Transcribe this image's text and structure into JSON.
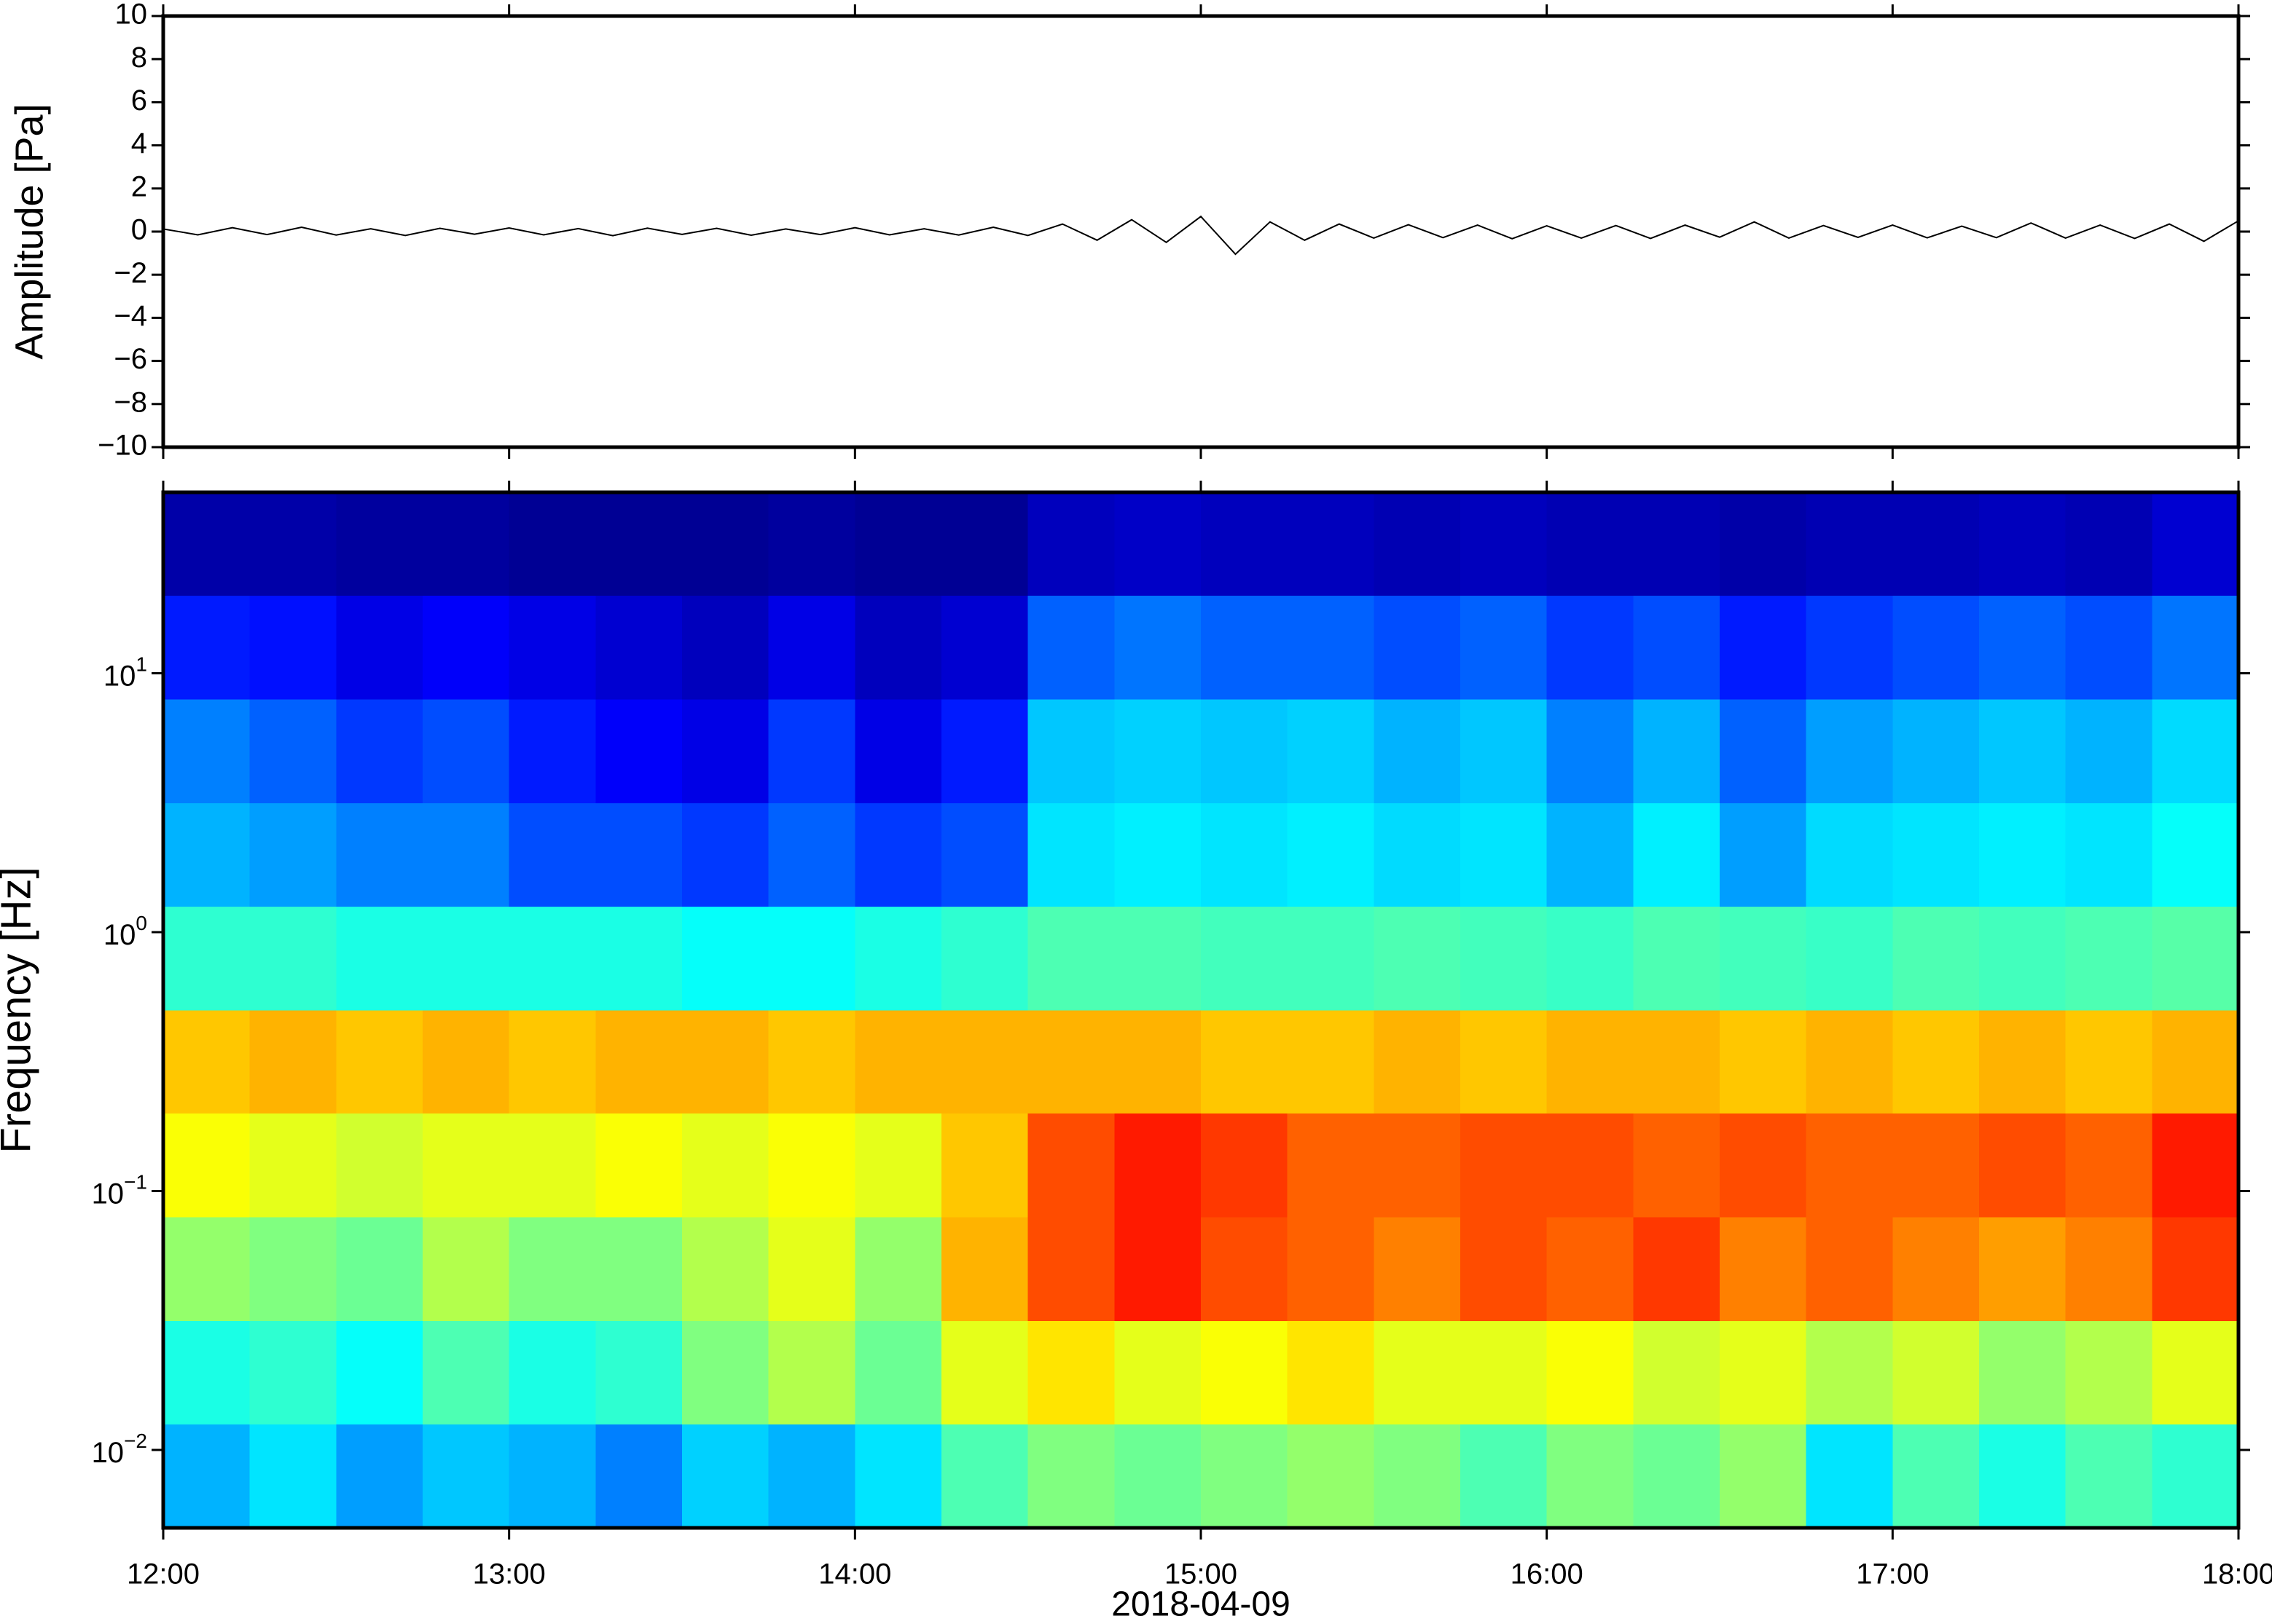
{
  "chart_data": [
    {
      "type": "line",
      "ylabel": "Amplitude [Pa]",
      "color": "#000000",
      "xlim": [
        12,
        18
      ],
      "xticks": [
        12,
        13,
        14,
        15,
        16,
        17,
        18
      ],
      "ylim": [
        -10,
        10
      ],
      "yticks": [
        {
          "value": -10,
          "label": "−10"
        },
        {
          "value": -8,
          "label": "−8"
        },
        {
          "value": -6,
          "label": "−6"
        },
        {
          "value": -4,
          "label": "−4"
        },
        {
          "value": -2,
          "label": "−2"
        },
        0,
        2,
        4,
        6,
        8,
        10
      ],
      "x": [
        12.0,
        12.1,
        12.2,
        12.3,
        12.4,
        12.5,
        12.6,
        12.7,
        12.8,
        12.9,
        13.0,
        13.1,
        13.2,
        13.3,
        13.4,
        13.5,
        13.6,
        13.7,
        13.8,
        13.9,
        14.0,
        14.1,
        14.2,
        14.3,
        14.4,
        14.5,
        14.6,
        14.7,
        14.8,
        14.9,
        15.0,
        15.1,
        15.2,
        15.3,
        15.4,
        15.5,
        15.6,
        15.7,
        15.8,
        15.9,
        16.0,
        16.1,
        16.2,
        16.3,
        16.4,
        16.5,
        16.6,
        16.7,
        16.8,
        16.9,
        17.0,
        17.1,
        17.2,
        17.3,
        17.4,
        17.5,
        17.6,
        17.7,
        17.8,
        17.9,
        18.0
      ],
      "values": [
        0.12,
        -0.15,
        0.18,
        -0.14,
        0.2,
        -0.16,
        0.13,
        -0.18,
        0.15,
        -0.12,
        0.17,
        -0.15,
        0.14,
        -0.19,
        0.16,
        -0.13,
        0.15,
        -0.17,
        0.12,
        -0.14,
        0.18,
        -0.15,
        0.13,
        -0.16,
        0.2,
        -0.18,
        0.35,
        -0.4,
        0.55,
        -0.5,
        0.7,
        -1.05,
        0.45,
        -0.4,
        0.35,
        -0.3,
        0.32,
        -0.28,
        0.3,
        -0.33,
        0.27,
        -0.3,
        0.28,
        -0.32,
        0.3,
        -0.26,
        0.45,
        -0.3,
        0.28,
        -0.27,
        0.3,
        -0.29,
        0.25,
        -0.28,
        0.4,
        -0.3,
        0.3,
        -0.32,
        0.35,
        -0.45,
        0.5
      ]
    },
    {
      "type": "heatmap",
      "ylabel": "Frequency [Hz]",
      "xlabel": "2018-04-09",
      "colormap": "jet",
      "log_y": true,
      "xlim": [
        12,
        18
      ],
      "xticks": [
        {
          "value": 12,
          "label": "12:00"
        },
        {
          "value": 13,
          "label": "13:00"
        },
        {
          "value": 14,
          "label": "14:00"
        },
        {
          "value": 15,
          "label": "15:00"
        },
        {
          "value": 16,
          "label": "16:00"
        },
        {
          "value": 17,
          "label": "17:00"
        },
        {
          "value": 18,
          "label": "18:00"
        }
      ],
      "ylim": [
        0.005,
        50
      ],
      "yticks": [
        {
          "value": 0.01,
          "label": "10",
          "exponent": "−2"
        },
        {
          "value": 0.1,
          "label": "10",
          "exponent": "−1"
        },
        {
          "value": 1,
          "label": "10",
          "exponent": "0"
        },
        {
          "value": 10,
          "label": "10",
          "exponent": "1"
        }
      ],
      "zlim": [
        0,
        1
      ],
      "time_bins": [
        12,
        12.25,
        12.5,
        12.75,
        13,
        13.25,
        13.5,
        13.75,
        14,
        14.25,
        14.5,
        14.75,
        15,
        15.25,
        15.5,
        15.75,
        16,
        16.25,
        16.5,
        16.75,
        17,
        17.25,
        17.5,
        17.75,
        18
      ],
      "freq_bins": [
        0.005,
        0.0126,
        0.0316,
        0.0794,
        0.2,
        0.5,
        1.26,
        3.16,
        7.94,
        20,
        50
      ],
      "z": [
        [
          0.3,
          0.35,
          0.28,
          0.32,
          0.3,
          0.25,
          0.33,
          0.3,
          0.35,
          0.45,
          0.5,
          0.48,
          0.5,
          0.52,
          0.5,
          0.45,
          0.5,
          0.48,
          0.52,
          0.35,
          0.45,
          0.4,
          0.45,
          0.42
        ],
        [
          0.4,
          0.42,
          0.38,
          0.45,
          0.4,
          0.42,
          0.5,
          0.55,
          0.48,
          0.6,
          0.65,
          0.6,
          0.62,
          0.65,
          0.6,
          0.6,
          0.62,
          0.58,
          0.6,
          0.55,
          0.58,
          0.52,
          0.55,
          0.6
        ],
        [
          0.52,
          0.5,
          0.48,
          0.55,
          0.5,
          0.5,
          0.55,
          0.6,
          0.52,
          0.7,
          0.8,
          0.85,
          0.8,
          0.78,
          0.75,
          0.8,
          0.78,
          0.82,
          0.75,
          0.78,
          0.75,
          0.72,
          0.75,
          0.82
        ],
        [
          0.62,
          0.6,
          0.58,
          0.6,
          0.6,
          0.62,
          0.6,
          0.62,
          0.6,
          0.68,
          0.8,
          0.85,
          0.82,
          0.78,
          0.78,
          0.8,
          0.8,
          0.78,
          0.8,
          0.78,
          0.78,
          0.8,
          0.78,
          0.85
        ],
        [
          0.68,
          0.7,
          0.68,
          0.7,
          0.68,
          0.7,
          0.7,
          0.68,
          0.7,
          0.7,
          0.7,
          0.7,
          0.68,
          0.68,
          0.7,
          0.68,
          0.7,
          0.7,
          0.68,
          0.7,
          0.68,
          0.7,
          0.68,
          0.7
        ],
        [
          0.42,
          0.42,
          0.4,
          0.4,
          0.4,
          0.4,
          0.38,
          0.38,
          0.4,
          0.42,
          0.45,
          0.45,
          0.44,
          0.44,
          0.45,
          0.44,
          0.43,
          0.45,
          0.44,
          0.43,
          0.45,
          0.44,
          0.45,
          0.46
        ],
        [
          0.3,
          0.28,
          0.25,
          0.25,
          0.2,
          0.2,
          0.18,
          0.22,
          0.18,
          0.2,
          0.35,
          0.36,
          0.35,
          0.36,
          0.34,
          0.35,
          0.3,
          0.36,
          0.28,
          0.34,
          0.35,
          0.36,
          0.35,
          0.38
        ],
        [
          0.25,
          0.22,
          0.18,
          0.2,
          0.15,
          0.12,
          0.1,
          0.18,
          0.1,
          0.15,
          0.32,
          0.33,
          0.32,
          0.33,
          0.3,
          0.32,
          0.25,
          0.3,
          0.22,
          0.28,
          0.3,
          0.32,
          0.3,
          0.34
        ],
        [
          0.15,
          0.14,
          0.1,
          0.12,
          0.1,
          0.08,
          0.06,
          0.1,
          0.06,
          0.08,
          0.22,
          0.24,
          0.22,
          0.22,
          0.2,
          0.22,
          0.18,
          0.2,
          0.15,
          0.18,
          0.2,
          0.22,
          0.2,
          0.24
        ],
        [
          0.04,
          0.04,
          0.03,
          0.03,
          0.02,
          0.02,
          0.02,
          0.03,
          0.02,
          0.02,
          0.06,
          0.07,
          0.06,
          0.06,
          0.05,
          0.06,
          0.05,
          0.05,
          0.04,
          0.05,
          0.05,
          0.06,
          0.05,
          0.08
        ]
      ]
    }
  ]
}
